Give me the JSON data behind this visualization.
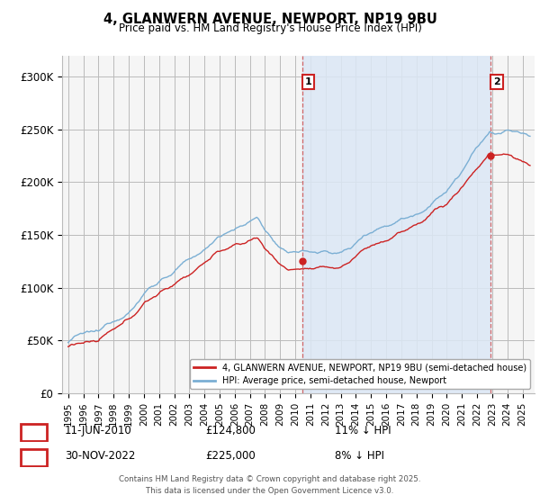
{
  "title_line1": "4, GLANWERN AVENUE, NEWPORT, NP19 9BU",
  "title_line2": "Price paid vs. HM Land Registry's House Price Index (HPI)",
  "ylim": [
    0,
    320000
  ],
  "yticks": [
    0,
    50000,
    100000,
    150000,
    200000,
    250000,
    300000
  ],
  "ytick_labels": [
    "£0",
    "£50K",
    "£100K",
    "£150K",
    "£200K",
    "£250K",
    "£300K"
  ],
  "hpi_color": "#7bafd4",
  "price_color": "#cc2222",
  "sale1_date": "11-JUN-2010",
  "sale1_price": "£124,800",
  "sale1_hpi": "11% ↓ HPI",
  "sale2_date": "30-NOV-2022",
  "sale2_price": "£225,000",
  "sale2_hpi": "8% ↓ HPI",
  "legend_line1": "4, GLANWERN AVENUE, NEWPORT, NP19 9BU (semi-detached house)",
  "legend_line2": "HPI: Average price, semi-detached house, Newport",
  "footnote": "Contains HM Land Registry data © Crown copyright and database right 2025.\nThis data is licensed under the Open Government Licence v3.0.",
  "grid_color": "#bbbbbb",
  "vline_color": "#cc4444",
  "shade_color": "#dce8f5",
  "bg_color": "#f5f5f5"
}
